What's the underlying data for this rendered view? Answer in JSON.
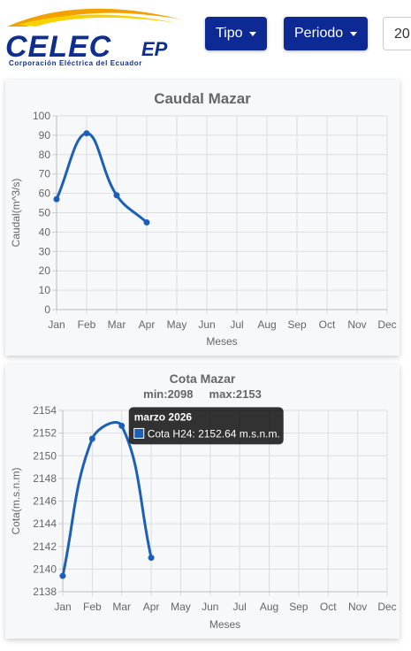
{
  "header": {
    "logo": {
      "name": "CELEC",
      "suffix": "EP",
      "tagline": "Corporación Eléctrica del Ecuador"
    },
    "buttons": [
      "Tipo",
      "Periodo"
    ],
    "input": "20"
  },
  "chart_data": [
    {
      "type": "line",
      "title": "Caudal Mazar",
      "xlabel": "Meses",
      "ylabel": "Caudal(m^3/s)",
      "categories": [
        "Jan",
        "Feb",
        "Mar",
        "Apr",
        "May",
        "Jun",
        "Jul",
        "Aug",
        "Sep",
        "Oct",
        "Nov",
        "Dec"
      ],
      "series": [
        {
          "color": "#1b5fb8",
          "values": [
            57,
            91,
            59,
            45,
            null,
            null,
            null,
            null,
            null,
            null,
            null,
            null
          ]
        }
      ],
      "ylim": [
        0,
        100
      ],
      "yticks": [
        0,
        10,
        20,
        30,
        40,
        50,
        60,
        70,
        80,
        90,
        100
      ],
      "grid": true
    },
    {
      "type": "line",
      "title": "Cota Mazar",
      "subtitle": "min:2098     max:2153",
      "xlabel": "Meses",
      "ylabel": "Cota(m.s.n.m)",
      "categories": [
        "Jan",
        "Feb",
        "Mar",
        "Apr",
        "May",
        "Jun",
        "Jul",
        "Aug",
        "Sep",
        "Oct",
        "Nov",
        "Dec"
      ],
      "series": [
        {
          "color": "#1b5fb8",
          "values": [
            2139.4,
            2151.5,
            2152.64,
            2141.0,
            null,
            null,
            null,
            null,
            null,
            null,
            null,
            null
          ]
        }
      ],
      "ylim": [
        2138,
        2154
      ],
      "yticks": [
        2138,
        2140,
        2142,
        2144,
        2146,
        2148,
        2150,
        2152,
        2154
      ],
      "grid": true,
      "tooltip": {
        "title": "marzo 2026",
        "label": "Cota H24: 2152.64 m.s.n.m."
      }
    }
  ]
}
